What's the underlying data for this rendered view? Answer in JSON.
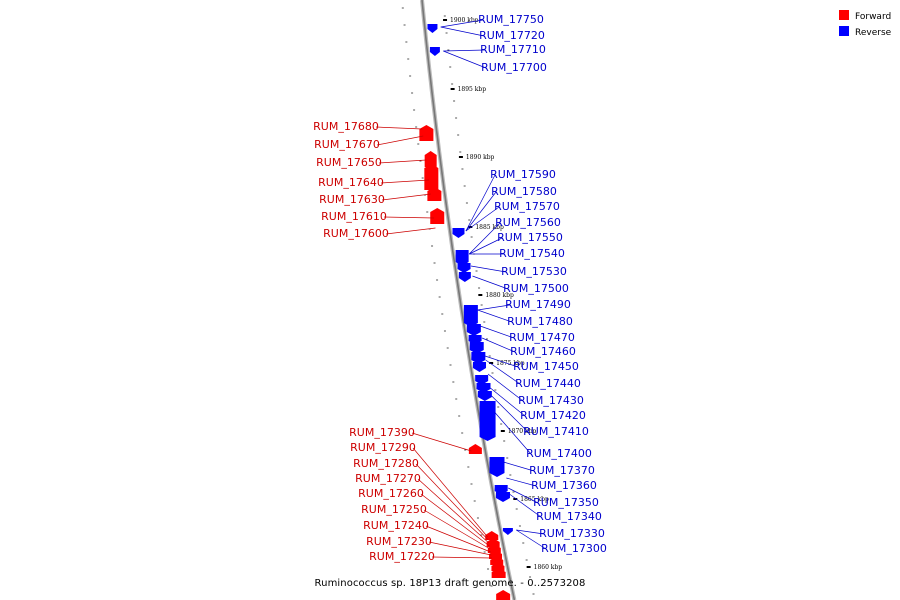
{
  "legend": [
    {
      "label": "Forward",
      "color": "#ff0000"
    },
    {
      "label": "Reverse",
      "color": "#0000ff"
    }
  ],
  "caption": "Ruminococcus sp. 18P13 draft genome. - 0..2573208",
  "kbp_ticks": [
    "1900 kbp",
    "1895 kbp",
    "1890 kbp",
    "1885 kbp",
    "1880 kbp",
    "1875 kbp",
    "1870 kbp",
    "1865 kbp",
    "1860 kbp"
  ],
  "forward_genes": [
    "RUM_17680",
    "RUM_17670",
    "RUM_17650",
    "RUM_17640",
    "RUM_17630",
    "RUM_17610",
    "RUM_17600",
    "RUM_17390",
    "RUM_17290",
    "RUM_17280",
    "RUM_17270",
    "RUM_17260",
    "RUM_17250",
    "RUM_17240",
    "RUM_17230",
    "RUM_17220"
  ],
  "reverse_genes": [
    "RUM_17750",
    "RUM_17720",
    "RUM_17710",
    "RUM_17700",
    "RUM_17590",
    "RUM_17580",
    "RUM_17570",
    "RUM_17560",
    "RUM_17550",
    "RUM_17540",
    "RUM_17530",
    "RUM_17500",
    "RUM_17490",
    "RUM_17480",
    "RUM_17470",
    "RUM_17460",
    "RUM_17450",
    "RUM_17440",
    "RUM_17430",
    "RUM_17420",
    "RUM_17410",
    "RUM_17400",
    "RUM_17370",
    "RUM_17360",
    "RUM_17350",
    "RUM_17340",
    "RUM_17330",
    "RUM_17300"
  ],
  "colors": {
    "forward": "#ff0000",
    "reverse": "#0000ff",
    "forward_label": "#cc0000",
    "reverse_label": "#0000cc",
    "backbone": "#888888"
  }
}
